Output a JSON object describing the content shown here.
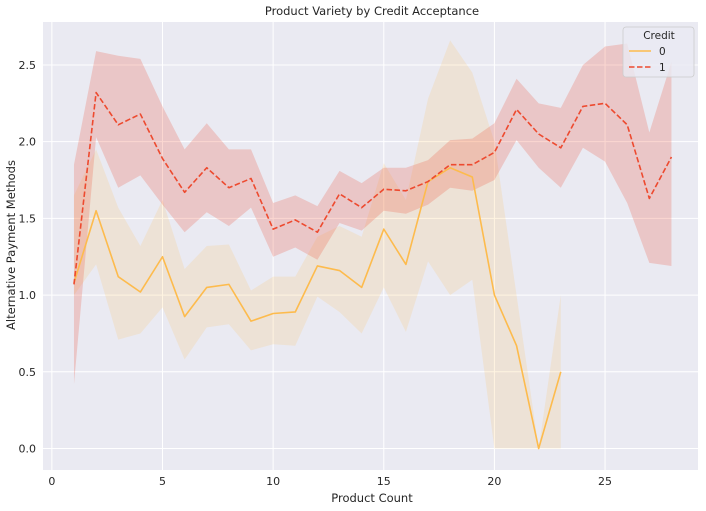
{
  "chart_data": {
    "type": "line",
    "title": "Product Variety by Credit Acceptance",
    "xlabel": "Product Count",
    "ylabel": "Alternative Payment Methods",
    "xlim": [
      -0.4,
      29.2
    ],
    "ylim": [
      -0.14,
      2.78
    ],
    "xticks": [
      0,
      5,
      10,
      15,
      20,
      25
    ],
    "yticks": [
      0.0,
      0.5,
      1.0,
      1.5,
      2.0,
      2.5
    ],
    "xtick_labels": [
      "0",
      "5",
      "10",
      "15",
      "20",
      "25"
    ],
    "ytick_labels": [
      "0.0",
      "0.5",
      "1.0",
      "1.5",
      "2.0",
      "2.5"
    ],
    "grid": true,
    "legend": {
      "title": "Credit",
      "placement": "top-right"
    },
    "series": [
      {
        "name": "0",
        "color": "#fdbb4d",
        "dash": "solid",
        "x": [
          1,
          2,
          3,
          4,
          5,
          6,
          7,
          8,
          9,
          10,
          11,
          12,
          13,
          14,
          15,
          16,
          17,
          18,
          19,
          20,
          21,
          22,
          23
        ],
        "y": [
          1.08,
          1.55,
          1.12,
          1.02,
          1.25,
          0.86,
          1.05,
          1.07,
          0.83,
          0.88,
          0.89,
          1.19,
          1.16,
          1.05,
          1.43,
          1.2,
          1.74,
          1.83,
          1.77,
          1.0,
          0.67,
          0.0,
          0.5
        ],
        "lower": [
          1.0,
          1.2,
          0.71,
          0.75,
          0.92,
          0.58,
          0.79,
          0.81,
          0.64,
          0.68,
          0.67,
          0.99,
          0.89,
          0.75,
          1.05,
          0.76,
          1.22,
          1.0,
          1.1,
          0.0,
          0.0,
          0.0,
          0.0
        ],
        "upper": [
          1.65,
          1.95,
          1.57,
          1.32,
          1.62,
          1.17,
          1.32,
          1.33,
          1.03,
          1.12,
          1.12,
          1.38,
          1.45,
          1.38,
          1.86,
          1.62,
          2.28,
          2.66,
          2.45,
          2.0,
          1.0,
          0.0,
          1.0
        ]
      },
      {
        "name": "1",
        "color": "#ed4a2f",
        "dash": "dashed",
        "x": [
          1,
          2,
          3,
          4,
          5,
          6,
          7,
          8,
          9,
          10,
          11,
          12,
          13,
          14,
          15,
          16,
          17,
          18,
          19,
          20,
          21,
          22,
          23,
          24,
          25,
          26,
          27,
          28
        ],
        "y": [
          1.07,
          2.32,
          2.11,
          2.18,
          1.89,
          1.67,
          1.83,
          1.7,
          1.76,
          1.43,
          1.49,
          1.41,
          1.66,
          1.57,
          1.69,
          1.68,
          1.74,
          1.85,
          1.85,
          1.93,
          2.21,
          2.05,
          1.96,
          2.23,
          2.25,
          2.11,
          1.63,
          1.9
        ],
        "lower": [
          0.42,
          2.03,
          1.7,
          1.78,
          1.59,
          1.41,
          1.54,
          1.45,
          1.57,
          1.25,
          1.31,
          1.23,
          1.47,
          1.42,
          1.55,
          1.53,
          1.59,
          1.7,
          1.68,
          1.75,
          2.01,
          1.83,
          1.7,
          1.96,
          1.87,
          1.6,
          1.21,
          1.19
        ],
        "upper": [
          1.85,
          2.59,
          2.56,
          2.54,
          2.23,
          1.95,
          2.12,
          1.95,
          1.95,
          1.6,
          1.65,
          1.58,
          1.81,
          1.73,
          1.83,
          1.83,
          1.88,
          2.01,
          2.02,
          2.12,
          2.41,
          2.25,
          2.22,
          2.5,
          2.62,
          2.64,
          2.06,
          2.52
        ]
      }
    ]
  }
}
